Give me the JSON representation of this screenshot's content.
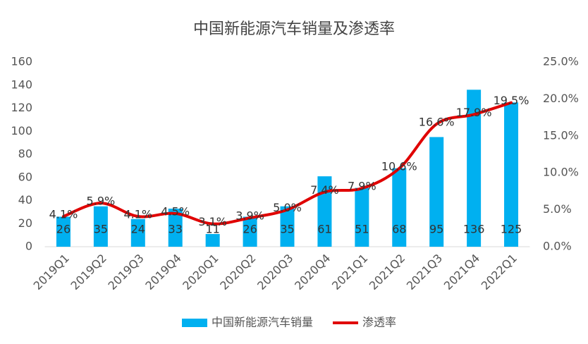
{
  "chart_data": {
    "type": "bar-line",
    "title": "中国新能源汽车销量及渗透率",
    "categories": [
      "2019Q1",
      "2019Q2",
      "2019Q3",
      "2019Q4",
      "2020Q1",
      "2020Q2",
      "2020Q3",
      "2020Q4",
      "2021Q1",
      "2021Q2",
      "2021Q3",
      "2021Q4",
      "2022Q1"
    ],
    "series": [
      {
        "name": "中国新能源汽车销量",
        "color": "#00b0f0",
        "kind": "bar",
        "values": [
          26,
          35,
          24,
          33,
          11,
          26,
          35,
          61,
          51,
          68,
          95,
          136,
          125
        ]
      },
      {
        "name": "渗透率",
        "color": "#e00000",
        "kind": "line",
        "axis": "y2",
        "values": [
          4.1,
          5.9,
          4.1,
          4.5,
          3.1,
          3.9,
          5.0,
          7.4,
          7.9,
          10.6,
          16.6,
          17.9,
          19.5
        ],
        "value_labels": [
          "4.1%",
          "5.9%",
          "4.1%",
          "4.5%",
          "3.1%",
          "3.9%",
          "5.0%",
          "7.4%",
          "7.9%",
          "10.6%",
          "16.6%",
          "17.9%",
          "19.5%"
        ]
      }
    ],
    "ylim": [
      0,
      160
    ],
    "yticks": [
      0,
      20,
      40,
      60,
      80,
      100,
      120,
      140,
      160
    ],
    "y2lim": [
      0,
      25
    ],
    "y2ticks": [
      {
        "value": 0,
        "label": "0.0%"
      },
      {
        "value": 5,
        "label": "5.0%"
      },
      {
        "value": 10,
        "label": "10.0%"
      },
      {
        "value": 15,
        "label": "15.0%"
      },
      {
        "value": 20,
        "label": "20.0%"
      },
      {
        "value": 25,
        "label": "25.0%"
      }
    ],
    "legend": "bottom"
  }
}
